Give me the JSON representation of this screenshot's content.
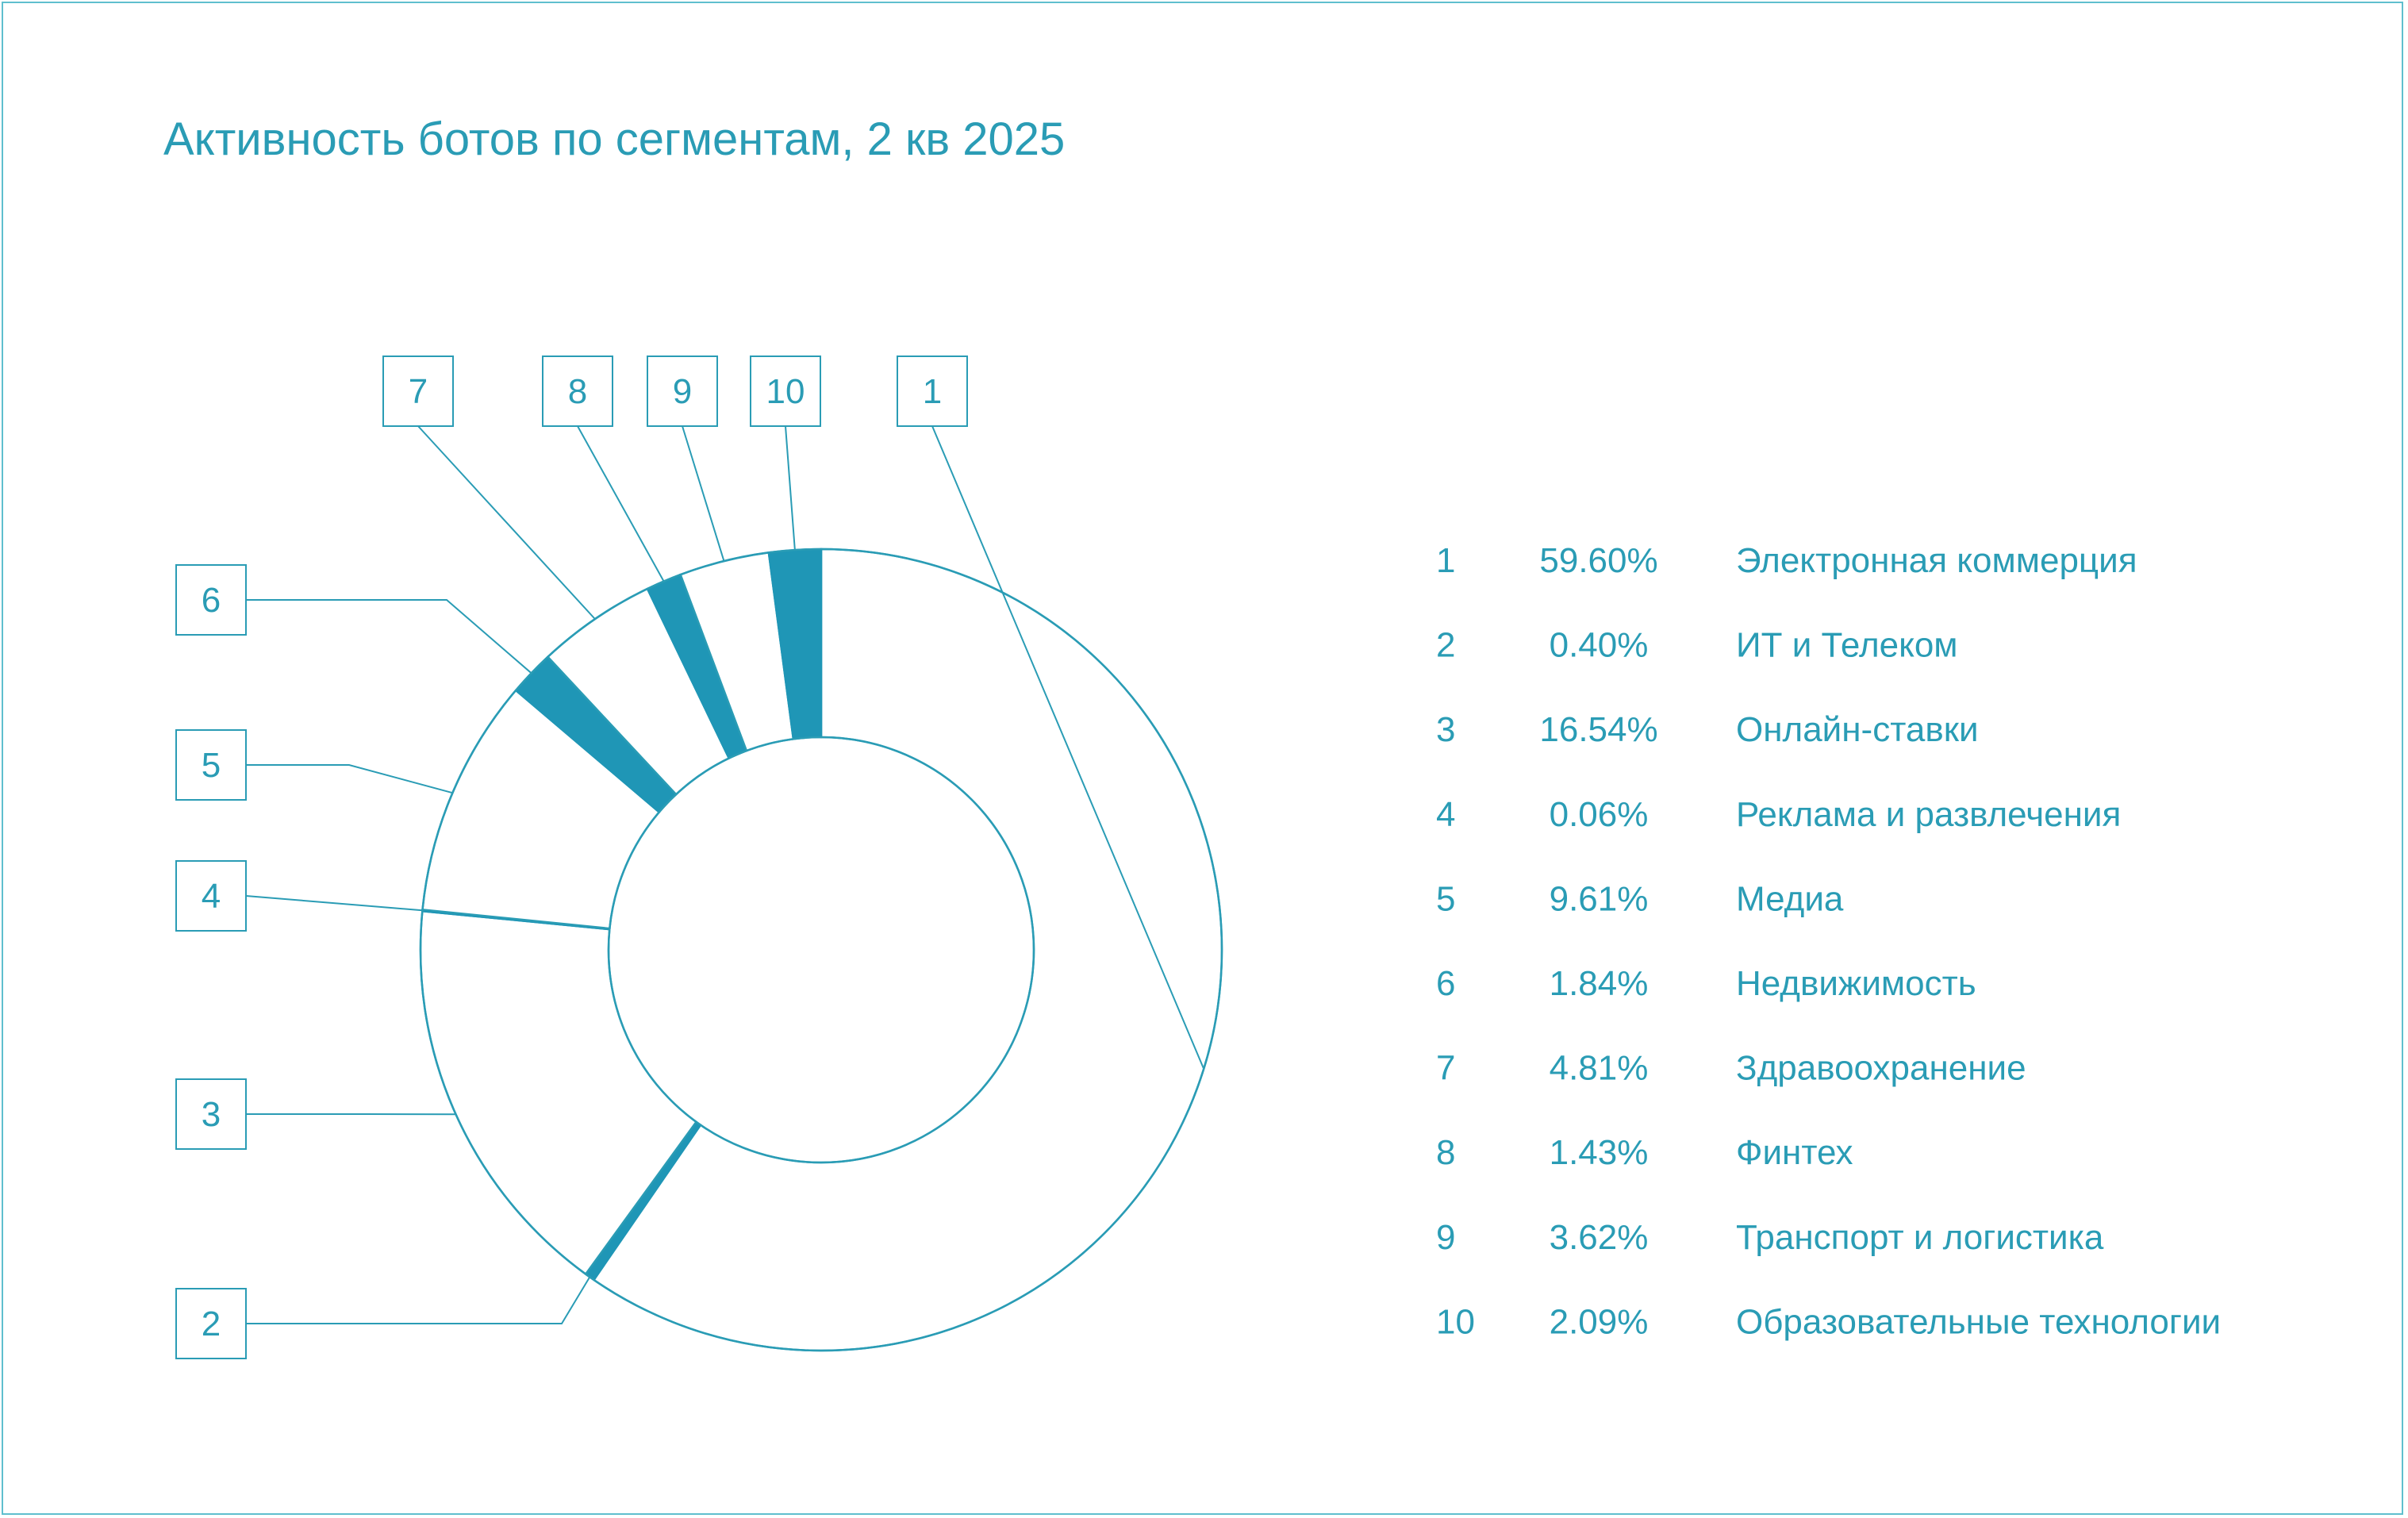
{
  "title": "Активность ботов по сегментам, 2 кв 2025",
  "colors": {
    "accent": "#1f96b6",
    "line": "#2a9cb5",
    "frame": "#5fbfce",
    "background": "#ffffff"
  },
  "chart_data": {
    "type": "pie",
    "variant": "donut",
    "title": "Активность ботов по сегментам, 2 кв 2025",
    "legend_placement": "right",
    "slices": [
      {
        "id": "1",
        "value": 59.6,
        "percent_label": "59.60%",
        "label": "Электронная коммерция"
      },
      {
        "id": "2",
        "value": 0.4,
        "percent_label": "0.40%",
        "label": "ИТ и Телеком"
      },
      {
        "id": "3",
        "value": 16.54,
        "percent_label": "16.54%",
        "label": "Онлайн-ставки"
      },
      {
        "id": "4",
        "value": 0.06,
        "percent_label": "0.06%",
        "label": "Реклама и развлечения"
      },
      {
        "id": "5",
        "value": 9.61,
        "percent_label": "9.61%",
        "label": "Медиа"
      },
      {
        "id": "6",
        "value": 1.84,
        "percent_label": "1.84%",
        "label": "Недвижимость"
      },
      {
        "id": "7",
        "value": 4.81,
        "percent_label": "4.81%",
        "label": "Здравоохранение"
      },
      {
        "id": "8",
        "value": 1.43,
        "percent_label": "1.43%",
        "label": "Финтех"
      },
      {
        "id": "9",
        "value": 3.62,
        "percent_label": "3.62%",
        "label": "Транспорт и логистика"
      },
      {
        "id": "10",
        "value": 2.09,
        "percent_label": "2.09%",
        "label": "Образовательные технологии"
      }
    ],
    "highlighted_ids": [
      "2",
      "4",
      "6",
      "8",
      "10"
    ]
  }
}
